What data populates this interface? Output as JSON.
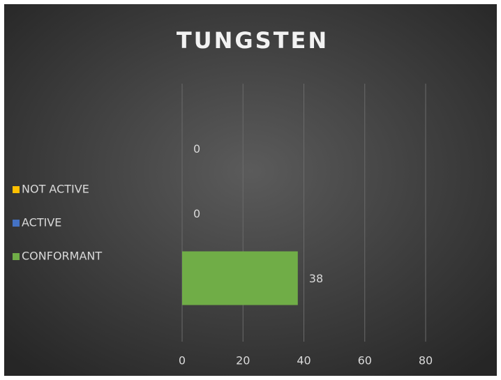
{
  "chart_data": {
    "type": "barh",
    "title": "TUNGSTEN",
    "series": [
      {
        "name": "CONFORMANT",
        "color": "#70ad47",
        "values": [
          38
        ]
      },
      {
        "name": "ACTIVE",
        "color": "#4472c4",
        "values": [
          0
        ]
      },
      {
        "name": "NOT ACTIVE",
        "color": "#ffc000",
        "values": [
          0
        ]
      }
    ],
    "xlim": [
      0,
      80
    ],
    "xticks": [
      0,
      20,
      40,
      60,
      80
    ],
    "grid": true,
    "legend": "left"
  }
}
